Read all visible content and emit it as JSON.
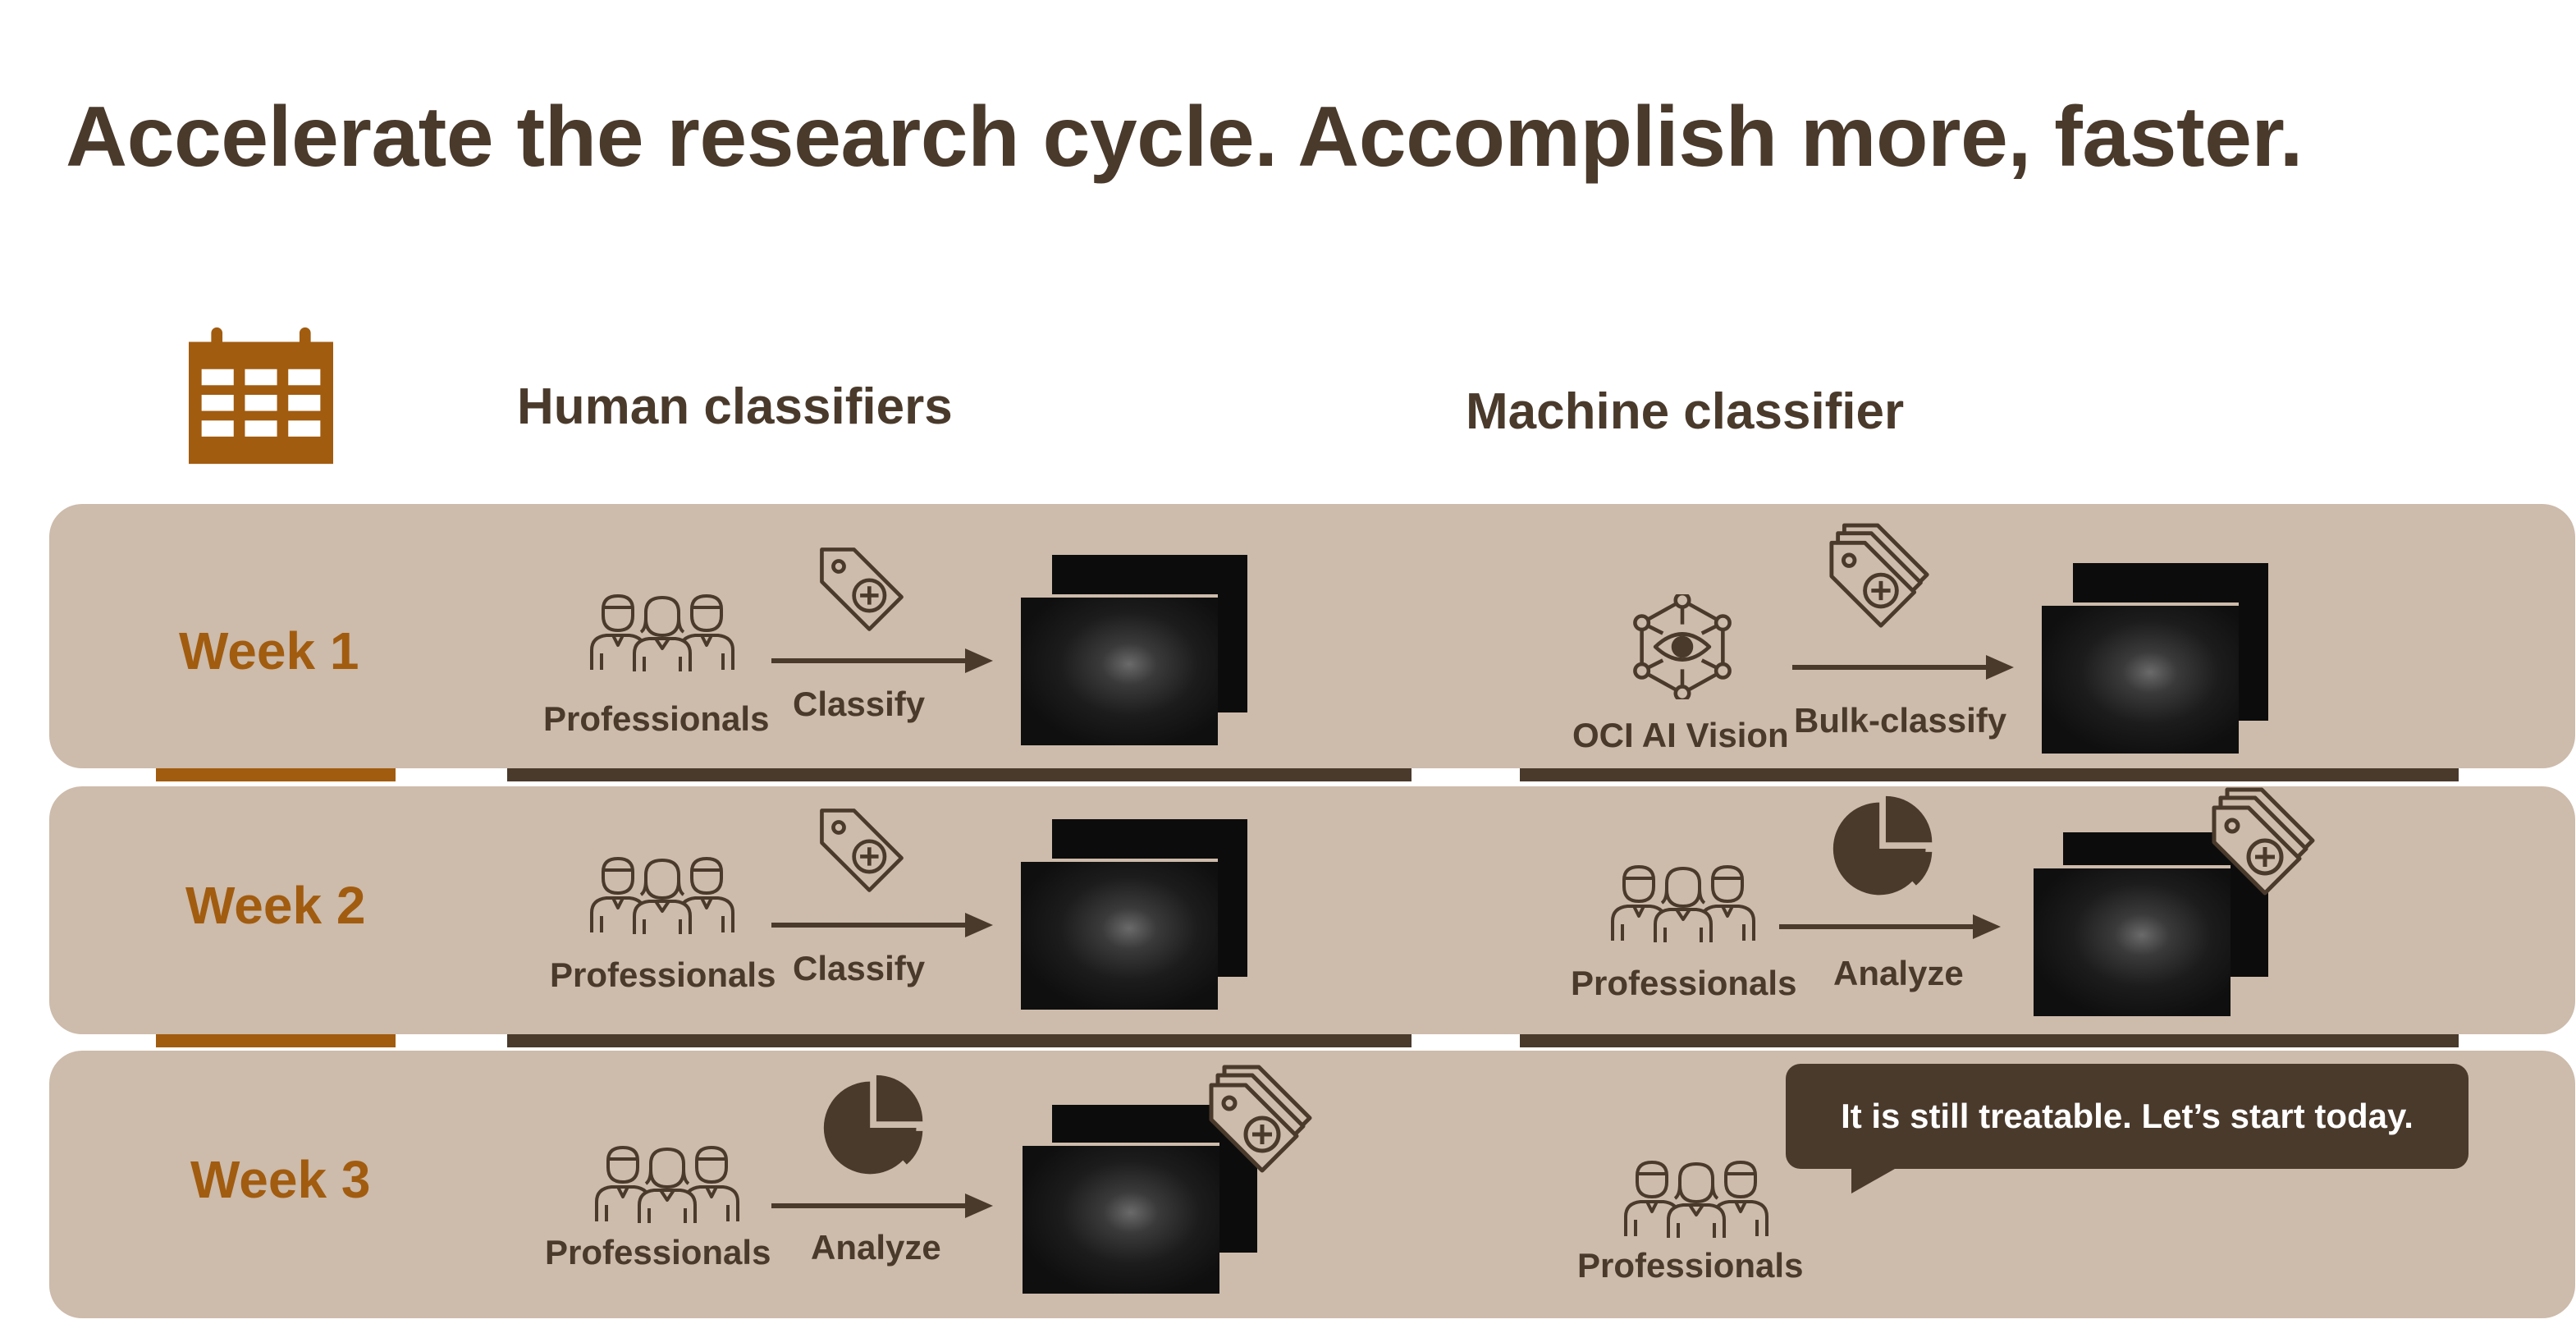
{
  "title": "Accelerate the research cycle. Accomplish more, faster.",
  "columns": {
    "human": "Human classifiers",
    "machine": "Machine classifier"
  },
  "weeks": [
    "Week 1",
    "Week 2",
    "Week 3"
  ],
  "labels": {
    "professionals": "Professionals",
    "classify": "Classify",
    "analyze": "Analyze",
    "oci_ai_vision": "OCI AI Vision",
    "bulk_classify": "Bulk-classify"
  },
  "bubble": "It is still treatable. Let’s start today.",
  "colors": {
    "row_bg": "#cdbbab",
    "dark": "#4a3a2c",
    "accent": "#a15c10"
  },
  "icons": [
    "calendar-icon",
    "people-icon",
    "tag-icon",
    "pie-chart-icon",
    "ai-vision-icon",
    "arrow-icon"
  ]
}
